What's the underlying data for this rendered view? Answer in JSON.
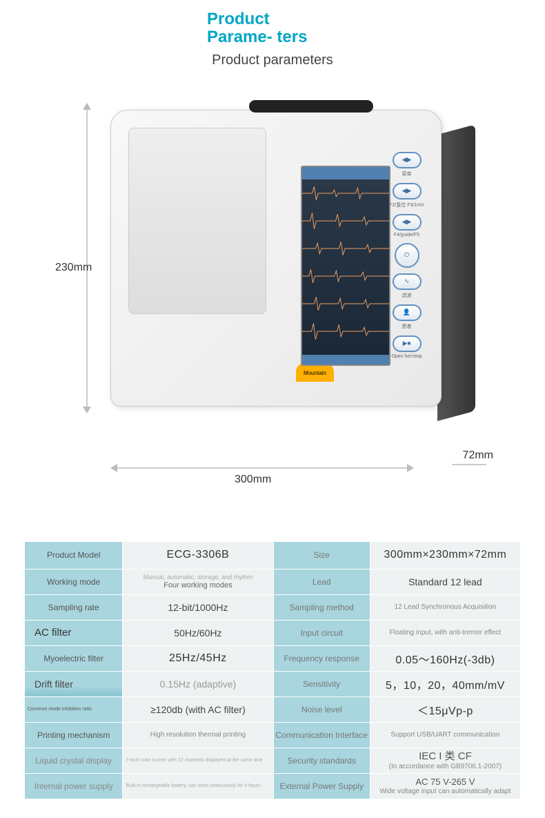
{
  "header": {
    "title_main": "Product Parame-\nters",
    "title_sub": "Product parameters"
  },
  "device": {
    "dim_height": "230mm",
    "dim_width": "300mm",
    "dim_depth": "72mm",
    "badge": "Mountain",
    "btn_labels": {
      "f4": "F4/guide/F5",
      "open": "Open her/stop"
    },
    "ecg_color": "#f0a060"
  },
  "specs": [
    {
      "l1": "Product Model",
      "v1": "ECG-3306B",
      "l2": "Size",
      "v2": "300mm×230mm×72mm",
      "v1c": "big",
      "v2c": "big",
      "l1c": "",
      "l2c": ""
    },
    {
      "l1": "Working mode",
      "v1_stack": [
        "Manual, automatic, storage, and rhythm",
        "Four working modes"
      ],
      "l2": "Lead",
      "v2": "Standard 12 lead",
      "l1c": "",
      "l2c": ""
    },
    {
      "l1": "Sampling rate",
      "v1": "12-bit/1000Hz",
      "l2": "Sampling method",
      "v2": "12 Lead Synchronous Acquisition",
      "v2c": "sm",
      "l1c": "",
      "l2c": ""
    },
    {
      "l1": "AC filter",
      "v1": "50Hz/60Hz",
      "l2": "Input circuit",
      "v2": "Floating input, with anti-tremor effect",
      "l1c": "big",
      "l2c": "gray",
      "v2c": "sm"
    },
    {
      "l1": "Myoelectric filter",
      "v1": "25Hz/45Hz",
      "l2": "Frequency response",
      "v2": "0.05～160Hz(-3db)",
      "v1c": "big",
      "v2c": "big",
      "l1c": "",
      "l2c": "gray"
    },
    {
      "l1": "Drift filter",
      "v1": "0.15Hz (adaptive)",
      "l2": "Sensitivity",
      "v2": "5，10，20，40mm/mV",
      "v1c": "gray",
      "v2c": "big",
      "l1c": "grad",
      "l2c": ""
    },
    {
      "l1": "Common mode inhibition ratio",
      "v1": "≥120db (with AC filter)",
      "l2": "Noise level",
      "v2": "＜15μVp-p",
      "l1c": "tiny",
      "v2c": "big",
      "l2c": ""
    },
    {
      "l1": "Printing mechanism",
      "v1": "High resolution thermal printing",
      "l2": "Communication Interface",
      "v2": "Support USB/UART communication",
      "v1c": "sm",
      "v2c": "sm",
      "l1c": "",
      "l2c": "gray"
    },
    {
      "l1": "Liquid crystal display",
      "v1": "7-inch color screen with 12 channels displayed at the same time",
      "l2": "Security standards",
      "v2_stack": [
        "IEC I 类 CF",
        "(In accordance with GB9706.1-2007)"
      ],
      "v1c": "xs",
      "l1c": "gray",
      "l2c": ""
    },
    {
      "l1": "Internal power supply",
      "v1": "Built-in rechargeable battery, can work continuously for 8 hours",
      "l2": "External Power Supply",
      "v2_stack": [
        "AC 75 V-265 V",
        "Wide voltage input can automatically adapt"
      ],
      "v1c": "xs",
      "l1c": "gray",
      "l2c": ""
    }
  ],
  "colors": {
    "accent": "#00a7c5",
    "label_bg": "#a8d5de",
    "val_bg": "#eef2f2"
  }
}
